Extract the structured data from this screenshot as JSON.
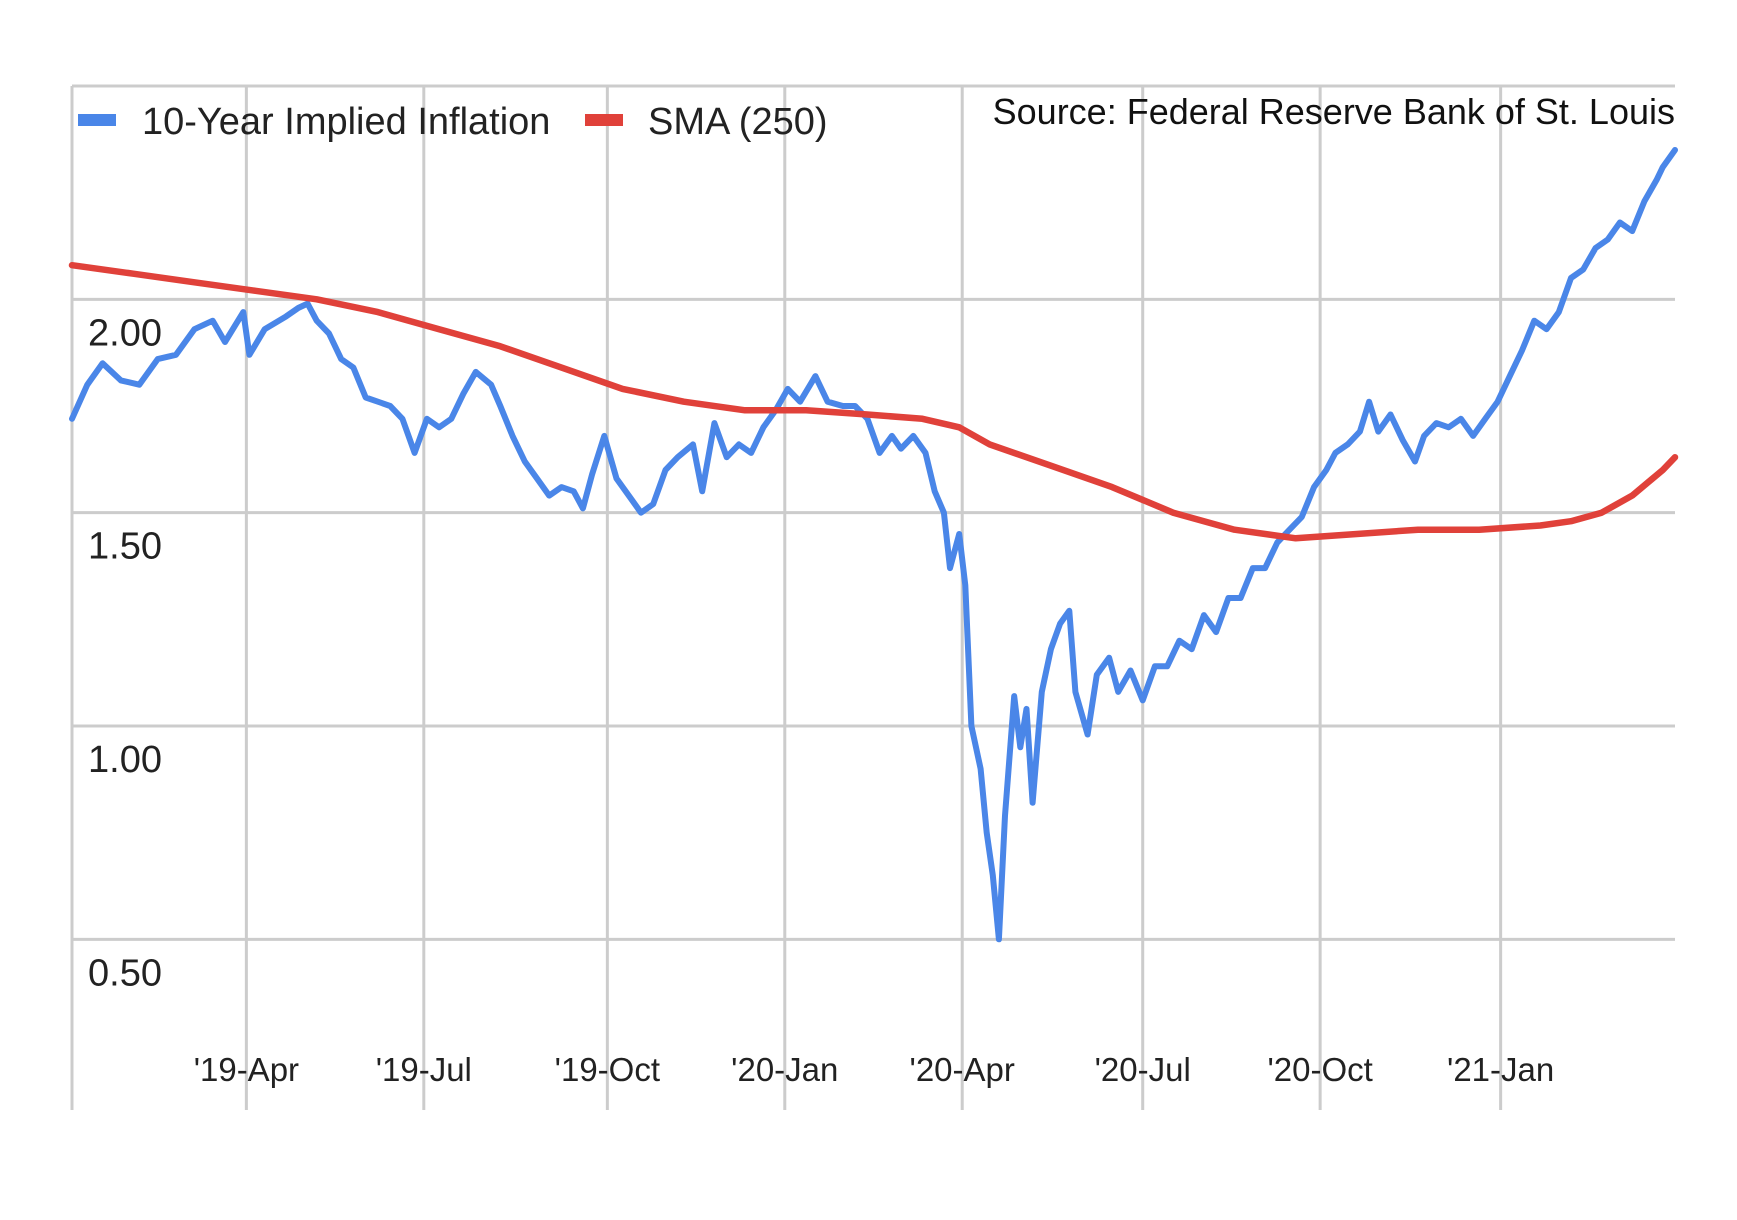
{
  "chart_data": {
    "type": "line",
    "title": "",
    "xlabel": "",
    "ylabel": "",
    "source_text": "Source: Federal Reserve Bank of St. Louis",
    "ylim": [
      0.1,
      2.5
    ],
    "xlim": [
      0,
      26.2
    ],
    "y_ticks": [
      {
        "value": 2.0,
        "label": "2.00"
      },
      {
        "value": 1.5,
        "label": "1.50"
      },
      {
        "value": 1.0,
        "label": "1.00"
      },
      {
        "value": 0.5,
        "label": "0.50"
      }
    ],
    "x_ticks": [
      {
        "value": 2.85,
        "label": "'19-Apr"
      },
      {
        "value": 5.75,
        "label": "'19-Jul"
      },
      {
        "value": 8.75,
        "label": "'19-Oct"
      },
      {
        "value": 11.65,
        "label": "'20-Jan"
      },
      {
        "value": 14.55,
        "label": "'20-Apr"
      },
      {
        "value": 17.5,
        "label": "'20-Jul"
      },
      {
        "value": 20.4,
        "label": "'20-Oct"
      },
      {
        "value": 23.35,
        "label": "'21-Jan"
      }
    ],
    "grid": true,
    "legend_position": "top-left",
    "series": [
      {
        "name": "10-Year Implied Inflation",
        "color": "#4a86e8",
        "points": [
          [
            0,
            1.72
          ],
          [
            0.25,
            1.8
          ],
          [
            0.5,
            1.85
          ],
          [
            0.8,
            1.81
          ],
          [
            1.1,
            1.8
          ],
          [
            1.4,
            1.86
          ],
          [
            1.7,
            1.87
          ],
          [
            2.0,
            1.93
          ],
          [
            2.3,
            1.95
          ],
          [
            2.5,
            1.9
          ],
          [
            2.8,
            1.97
          ],
          [
            2.9,
            1.87
          ],
          [
            3.15,
            1.93
          ],
          [
            3.5,
            1.96
          ],
          [
            3.7,
            1.98
          ],
          [
            3.85,
            1.99
          ],
          [
            4.0,
            1.95
          ],
          [
            4.2,
            1.92
          ],
          [
            4.4,
            1.86
          ],
          [
            4.6,
            1.84
          ],
          [
            4.8,
            1.77
          ],
          [
            5.0,
            1.76
          ],
          [
            5.2,
            1.75
          ],
          [
            5.4,
            1.72
          ],
          [
            5.6,
            1.64
          ],
          [
            5.8,
            1.72
          ],
          [
            6.0,
            1.7
          ],
          [
            6.2,
            1.72
          ],
          [
            6.4,
            1.78
          ],
          [
            6.6,
            1.83
          ],
          [
            6.85,
            1.8
          ],
          [
            7.0,
            1.75
          ],
          [
            7.2,
            1.68
          ],
          [
            7.4,
            1.62
          ],
          [
            7.6,
            1.58
          ],
          [
            7.8,
            1.54
          ],
          [
            8.0,
            1.56
          ],
          [
            8.2,
            1.55
          ],
          [
            8.35,
            1.51
          ],
          [
            8.5,
            1.59
          ],
          [
            8.7,
            1.68
          ],
          [
            8.9,
            1.58
          ],
          [
            9.1,
            1.54
          ],
          [
            9.3,
            1.5
          ],
          [
            9.5,
            1.52
          ],
          [
            9.7,
            1.6
          ],
          [
            9.9,
            1.63
          ],
          [
            10.15,
            1.66
          ],
          [
            10.3,
            1.55
          ],
          [
            10.5,
            1.71
          ],
          [
            10.7,
            1.63
          ],
          [
            10.9,
            1.66
          ],
          [
            11.1,
            1.64
          ],
          [
            11.3,
            1.7
          ],
          [
            11.5,
            1.74
          ],
          [
            11.7,
            1.79
          ],
          [
            11.9,
            1.76
          ],
          [
            12.15,
            1.82
          ],
          [
            12.35,
            1.76
          ],
          [
            12.6,
            1.75
          ],
          [
            12.8,
            1.75
          ],
          [
            13.0,
            1.72
          ],
          [
            13.2,
            1.64
          ],
          [
            13.4,
            1.68
          ],
          [
            13.55,
            1.65
          ],
          [
            13.75,
            1.68
          ],
          [
            13.95,
            1.64
          ],
          [
            14.1,
            1.55
          ],
          [
            14.25,
            1.5
          ],
          [
            14.35,
            1.37
          ],
          [
            14.5,
            1.45
          ],
          [
            14.6,
            1.33
          ],
          [
            14.7,
            1.0
          ],
          [
            14.85,
            0.9
          ],
          [
            14.95,
            0.75
          ],
          [
            15.05,
            0.65
          ],
          [
            15.15,
            0.5
          ],
          [
            15.25,
            0.79
          ],
          [
            15.4,
            1.07
          ],
          [
            15.5,
            0.95
          ],
          [
            15.6,
            1.04
          ],
          [
            15.7,
            0.82
          ],
          [
            15.85,
            1.08
          ],
          [
            16.0,
            1.18
          ],
          [
            16.15,
            1.24
          ],
          [
            16.3,
            1.27
          ],
          [
            16.4,
            1.08
          ],
          [
            16.6,
            0.98
          ],
          [
            16.75,
            1.12
          ],
          [
            16.95,
            1.16
          ],
          [
            17.1,
            1.08
          ],
          [
            17.3,
            1.13
          ],
          [
            17.5,
            1.06
          ],
          [
            17.7,
            1.14
          ],
          [
            17.9,
            1.14
          ],
          [
            18.1,
            1.2
          ],
          [
            18.3,
            1.18
          ],
          [
            18.5,
            1.26
          ],
          [
            18.7,
            1.22
          ],
          [
            18.9,
            1.3
          ],
          [
            19.1,
            1.3
          ],
          [
            19.3,
            1.37
          ],
          [
            19.5,
            1.37
          ],
          [
            19.7,
            1.43
          ],
          [
            19.9,
            1.46
          ],
          [
            20.1,
            1.49
          ],
          [
            20.3,
            1.56
          ],
          [
            20.5,
            1.6
          ],
          [
            20.65,
            1.64
          ],
          [
            20.85,
            1.66
          ],
          [
            21.05,
            1.69
          ],
          [
            21.2,
            1.76
          ],
          [
            21.35,
            1.69
          ],
          [
            21.55,
            1.73
          ],
          [
            21.75,
            1.67
          ],
          [
            21.95,
            1.62
          ],
          [
            22.1,
            1.68
          ],
          [
            22.3,
            1.71
          ],
          [
            22.5,
            1.7
          ],
          [
            22.7,
            1.72
          ],
          [
            22.9,
            1.68
          ],
          [
            23.1,
            1.72
          ],
          [
            23.3,
            1.76
          ],
          [
            23.5,
            1.82
          ],
          [
            23.7,
            1.88
          ],
          [
            23.9,
            1.95
          ],
          [
            24.1,
            1.93
          ],
          [
            24.3,
            1.97
          ],
          [
            24.5,
            2.05
          ],
          [
            24.7,
            2.07
          ],
          [
            24.9,
            2.12
          ],
          [
            25.1,
            2.14
          ],
          [
            25.3,
            2.18
          ],
          [
            25.5,
            2.16
          ],
          [
            25.7,
            2.23
          ],
          [
            25.9,
            2.28
          ],
          [
            26.0,
            2.31
          ],
          [
            26.2,
            2.35
          ]
        ]
      },
      {
        "name": "SMA (250)",
        "color": "#e0413a",
        "points": [
          [
            0,
            2.08
          ],
          [
            1.0,
            2.06
          ],
          [
            2.0,
            2.04
          ],
          [
            3.0,
            2.02
          ],
          [
            4.0,
            2.0
          ],
          [
            5.0,
            1.97
          ],
          [
            6.0,
            1.93
          ],
          [
            7.0,
            1.89
          ],
          [
            8.0,
            1.84
          ],
          [
            9.0,
            1.79
          ],
          [
            10.0,
            1.76
          ],
          [
            11.0,
            1.74
          ],
          [
            12.0,
            1.74
          ],
          [
            13.0,
            1.73
          ],
          [
            13.9,
            1.72
          ],
          [
            14.5,
            1.7
          ],
          [
            15.0,
            1.66
          ],
          [
            16.0,
            1.61
          ],
          [
            17.0,
            1.56
          ],
          [
            18.0,
            1.5
          ],
          [
            19.0,
            1.46
          ],
          [
            20.0,
            1.44
          ],
          [
            21.0,
            1.45
          ],
          [
            22.0,
            1.46
          ],
          [
            23.0,
            1.46
          ],
          [
            24.0,
            1.47
          ],
          [
            24.5,
            1.48
          ],
          [
            25.0,
            1.5
          ],
          [
            25.5,
            1.54
          ],
          [
            26.0,
            1.6
          ],
          [
            26.2,
            1.63
          ]
        ]
      }
    ]
  }
}
